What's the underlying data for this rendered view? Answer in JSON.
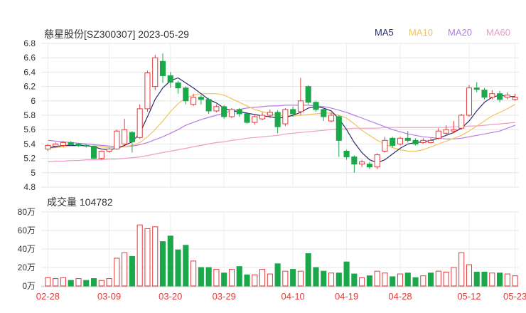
{
  "header": {
    "title": "慈星股份[SZ300307] 2023-05-29"
  },
  "legend": [
    {
      "label": "MA5",
      "color": "#2b2b6b"
    },
    {
      "label": "MA10",
      "color": "#f2c25b"
    },
    {
      "label": "MA20",
      "color": "#b67de0"
    },
    {
      "label": "MA60",
      "color": "#f29ac8"
    }
  ],
  "volume": {
    "label": "成交量",
    "value": "104782"
  },
  "chart_data": [
    {
      "type": "candlestick",
      "title": "慈星股份[SZ300307] 2023-05-29",
      "ylim": [
        4.8,
        6.8
      ],
      "y_ticks": [
        "6.8",
        "6.6",
        "6.4",
        "6.2",
        "6",
        "5.8",
        "5.6",
        "5.4",
        "5.2",
        "5",
        "4.8"
      ],
      "x_ticks": [
        "02-28",
        "03-09",
        "03-20",
        "03-29",
        "04-10",
        "04-19",
        "04-28",
        "05-12",
        "05-23"
      ],
      "up_color": "#e23b3b",
      "down_color": "#1aa84a",
      "ohlc": [
        [
          5.33,
          5.38,
          5.3,
          5.4
        ],
        [
          5.37,
          5.4,
          5.35,
          5.42
        ],
        [
          5.38,
          5.42,
          5.36,
          5.44
        ],
        [
          5.42,
          5.39,
          5.37,
          5.44
        ],
        [
          5.4,
          5.38,
          5.36,
          5.41
        ],
        [
          5.38,
          5.37,
          5.35,
          5.4
        ],
        [
          5.37,
          5.2,
          5.19,
          5.38
        ],
        [
          5.2,
          5.3,
          5.18,
          5.31
        ],
        [
          5.3,
          5.33,
          5.28,
          5.35
        ],
        [
          5.33,
          5.58,
          5.32,
          5.6
        ],
        [
          5.4,
          5.6,
          5.38,
          5.75
        ],
        [
          5.56,
          5.43,
          5.28,
          5.58
        ],
        [
          5.49,
          5.89,
          5.47,
          5.95
        ],
        [
          5.89,
          6.39,
          5.85,
          6.42
        ],
        [
          6.2,
          6.6,
          6.15,
          6.64
        ],
        [
          6.55,
          6.35,
          6.25,
          6.66
        ],
        [
          6.35,
          6.26,
          6.18,
          6.4
        ],
        [
          6.25,
          6.18,
          6.1,
          6.28
        ],
        [
          6.18,
          6.0,
          5.95,
          6.2
        ],
        [
          5.95,
          6.05,
          5.93,
          6.1
        ],
        [
          6.05,
          6.02,
          5.95,
          6.08
        ],
        [
          6.02,
          5.86,
          5.82,
          6.04
        ],
        [
          5.86,
          5.92,
          5.84,
          5.95
        ],
        [
          5.92,
          5.78,
          5.75,
          5.94
        ],
        [
          5.78,
          5.88,
          5.76,
          5.9
        ],
        [
          5.88,
          5.82,
          5.78,
          5.9
        ],
        [
          5.82,
          5.7,
          5.68,
          5.84
        ],
        [
          5.7,
          5.78,
          5.67,
          5.8
        ],
        [
          5.75,
          5.8,
          5.73,
          5.84
        ],
        [
          5.8,
          5.84,
          5.76,
          5.88
        ],
        [
          5.84,
          5.64,
          5.55,
          5.87
        ],
        [
          5.68,
          5.88,
          5.65,
          5.9
        ],
        [
          5.88,
          5.82,
          5.78,
          5.92
        ],
        [
          5.85,
          6.0,
          5.8,
          6.32
        ],
        [
          6.2,
          5.98,
          5.95,
          6.22
        ],
        [
          5.98,
          5.88,
          5.85,
          6.0
        ],
        [
          5.88,
          5.78,
          5.72,
          5.9
        ],
        [
          5.72,
          5.8,
          5.7,
          5.84
        ],
        [
          5.78,
          5.45,
          5.22,
          5.8
        ],
        [
          5.3,
          5.22,
          5.18,
          5.32
        ],
        [
          5.22,
          5.12,
          5.0,
          5.24
        ],
        [
          5.12,
          5.15,
          5.08,
          5.18
        ],
        [
          5.12,
          5.08,
          5.05,
          5.15
        ],
        [
          5.08,
          5.25,
          5.05,
          5.27
        ],
        [
          5.3,
          5.45,
          5.28,
          5.5
        ],
        [
          5.48,
          5.38,
          5.35,
          5.5
        ],
        [
          5.4,
          5.48,
          5.38,
          5.5
        ],
        [
          5.48,
          5.45,
          5.42,
          5.58
        ],
        [
          5.45,
          5.4,
          5.38,
          5.48
        ],
        [
          5.42,
          5.45,
          5.4,
          5.48
        ],
        [
          5.42,
          5.45,
          5.41,
          5.48
        ],
        [
          5.48,
          5.58,
          5.46,
          5.62
        ],
        [
          5.55,
          5.6,
          5.52,
          5.66
        ],
        [
          5.58,
          5.6,
          5.55,
          5.72
        ],
        [
          5.62,
          5.8,
          5.6,
          5.82
        ],
        [
          5.8,
          6.18,
          5.78,
          6.22
        ],
        [
          6.18,
          6.16,
          6.12,
          6.26
        ],
        [
          6.15,
          6.05,
          6.02,
          6.18
        ],
        [
          6.05,
          6.1,
          6.02,
          6.15
        ],
        [
          6.1,
          6.02,
          5.98,
          6.14
        ],
        [
          6.05,
          6.08,
          6.02,
          6.12
        ],
        [
          6.02,
          6.05,
          6.0,
          6.1
        ]
      ],
      "ma5": [
        5.35,
        5.36,
        5.38,
        5.38,
        5.38,
        5.38,
        5.36,
        5.33,
        5.32,
        5.34,
        5.38,
        5.43,
        5.55,
        5.78,
        6.02,
        6.18,
        6.28,
        6.32,
        6.25,
        6.18,
        6.1,
        6.02,
        5.97,
        5.9,
        5.86,
        5.85,
        5.83,
        5.81,
        5.79,
        5.78,
        5.76,
        5.77,
        5.8,
        5.84,
        5.9,
        5.92,
        5.9,
        5.86,
        5.75,
        5.6,
        5.42,
        5.28,
        5.18,
        5.14,
        5.18,
        5.26,
        5.34,
        5.4,
        5.42,
        5.43,
        5.45,
        5.48,
        5.52,
        5.56,
        5.62,
        5.72,
        5.86,
        5.98,
        6.05,
        6.08,
        6.06,
        6.06
      ],
      "ma10": [
        5.34,
        5.35,
        5.36,
        5.37,
        5.37,
        5.37,
        5.37,
        5.36,
        5.35,
        5.35,
        5.36,
        5.38,
        5.42,
        5.5,
        5.6,
        5.72,
        5.85,
        5.96,
        6.04,
        6.08,
        6.1,
        6.1,
        6.1,
        6.08,
        6.03,
        5.98,
        5.93,
        5.88,
        5.85,
        5.82,
        5.8,
        5.79,
        5.79,
        5.8,
        5.81,
        5.82,
        5.83,
        5.83,
        5.8,
        5.76,
        5.68,
        5.59,
        5.52,
        5.45,
        5.4,
        5.35,
        5.32,
        5.3,
        5.3,
        5.32,
        5.36,
        5.4,
        5.44,
        5.48,
        5.52,
        5.58,
        5.65,
        5.72,
        5.79,
        5.84,
        5.89,
        5.95
      ],
      "ma20": [
        5.45,
        5.44,
        5.43,
        5.42,
        5.41,
        5.4,
        5.39,
        5.38,
        5.37,
        5.36,
        5.36,
        5.37,
        5.39,
        5.42,
        5.46,
        5.5,
        5.55,
        5.6,
        5.66,
        5.7,
        5.74,
        5.77,
        5.8,
        5.83,
        5.86,
        5.88,
        5.9,
        5.91,
        5.92,
        5.93,
        5.93,
        5.94,
        5.94,
        5.94,
        5.94,
        5.93,
        5.92,
        5.9,
        5.87,
        5.84,
        5.8,
        5.76,
        5.72,
        5.68,
        5.64,
        5.6,
        5.57,
        5.54,
        5.52,
        5.5,
        5.49,
        5.48,
        5.47,
        5.47,
        5.48,
        5.5,
        5.52,
        5.54,
        5.56,
        5.58,
        5.62,
        5.66
      ],
      "ma60": [
        5.15,
        5.16,
        5.16,
        5.17,
        5.17,
        5.18,
        5.18,
        5.18,
        5.19,
        5.19,
        5.2,
        5.21,
        5.22,
        5.24,
        5.26,
        5.28,
        5.3,
        5.32,
        5.34,
        5.36,
        5.38,
        5.4,
        5.42,
        5.43,
        5.45,
        5.46,
        5.48,
        5.49,
        5.5,
        5.51,
        5.52,
        5.54,
        5.55,
        5.56,
        5.57,
        5.58,
        5.59,
        5.6,
        5.61,
        5.61,
        5.62,
        5.62,
        5.62,
        5.62,
        5.63,
        5.63,
        5.63,
        5.63,
        5.63,
        5.63,
        5.63,
        5.63,
        5.63,
        5.64,
        5.64,
        5.65,
        5.65,
        5.66,
        5.67,
        5.68,
        5.69,
        5.7
      ]
    },
    {
      "type": "bar",
      "title": "成交量 104782",
      "unit": "万",
      "ylim": [
        0,
        80
      ],
      "y_ticks": [
        "80万",
        "60万",
        "40万",
        "20万",
        "0万"
      ],
      "values": [
        9,
        8,
        9,
        6,
        8,
        6,
        8,
        6,
        8,
        30,
        36,
        32,
        66,
        62,
        64,
        48,
        54,
        39,
        44,
        27,
        20,
        20,
        18,
        14,
        18,
        21,
        12,
        12,
        18,
        13,
        24,
        16,
        18,
        16,
        35,
        20,
        16,
        14,
        14,
        26,
        13,
        9,
        11,
        16,
        14,
        10,
        13,
        14,
        9,
        11,
        14,
        16,
        15,
        20,
        36,
        23,
        15,
        15,
        14,
        14,
        13,
        11
      ],
      "up": [
        1,
        1,
        1,
        0,
        1,
        0,
        0,
        1,
        1,
        1,
        1,
        0,
        1,
        1,
        1,
        0,
        0,
        0,
        0,
        1,
        0,
        0,
        1,
        0,
        1,
        0,
        0,
        1,
        1,
        1,
        0,
        1,
        0,
        1,
        0,
        0,
        0,
        1,
        0,
        0,
        0,
        1,
        0,
        1,
        1,
        0,
        1,
        0,
        0,
        1,
        0,
        1,
        1,
        1,
        1,
        1,
        0,
        0,
        1,
        0,
        1,
        1
      ]
    }
  ]
}
